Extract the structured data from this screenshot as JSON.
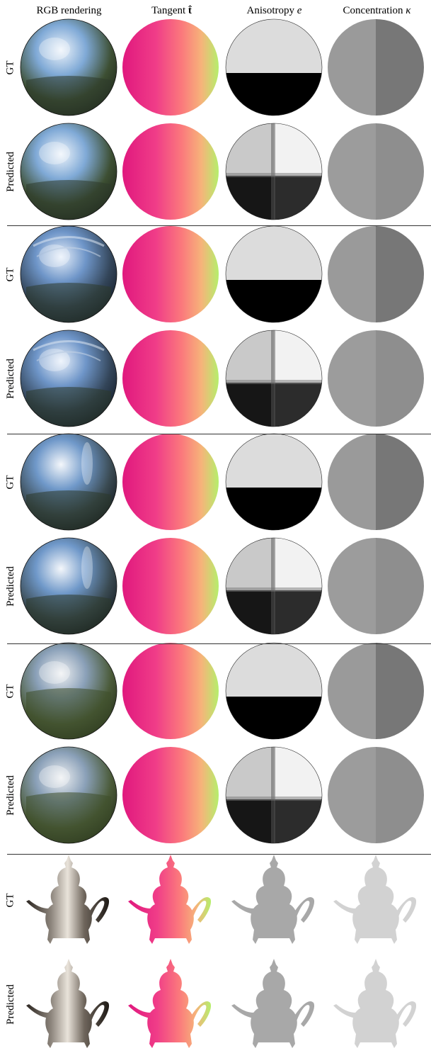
{
  "columns": {
    "rgb": "RGB rendering",
    "tangent_prefix": "Tangent ",
    "tangent_sym": "t̂",
    "anisotropy_prefix": "Anisotropy ",
    "anisotropy_sym": "e",
    "concentration_prefix": "Concentration ",
    "concentration_sym": "κ"
  },
  "row_labels": {
    "gt": "GT",
    "predicted": "Predicted"
  },
  "groups": [
    {
      "id": "sphere-1",
      "subject": "sphere"
    },
    {
      "id": "sphere-2",
      "subject": "sphere"
    },
    {
      "id": "sphere-3",
      "subject": "sphere"
    },
    {
      "id": "sphere-4",
      "subject": "sphere"
    },
    {
      "id": "teapot",
      "subject": "teapot"
    }
  ]
}
